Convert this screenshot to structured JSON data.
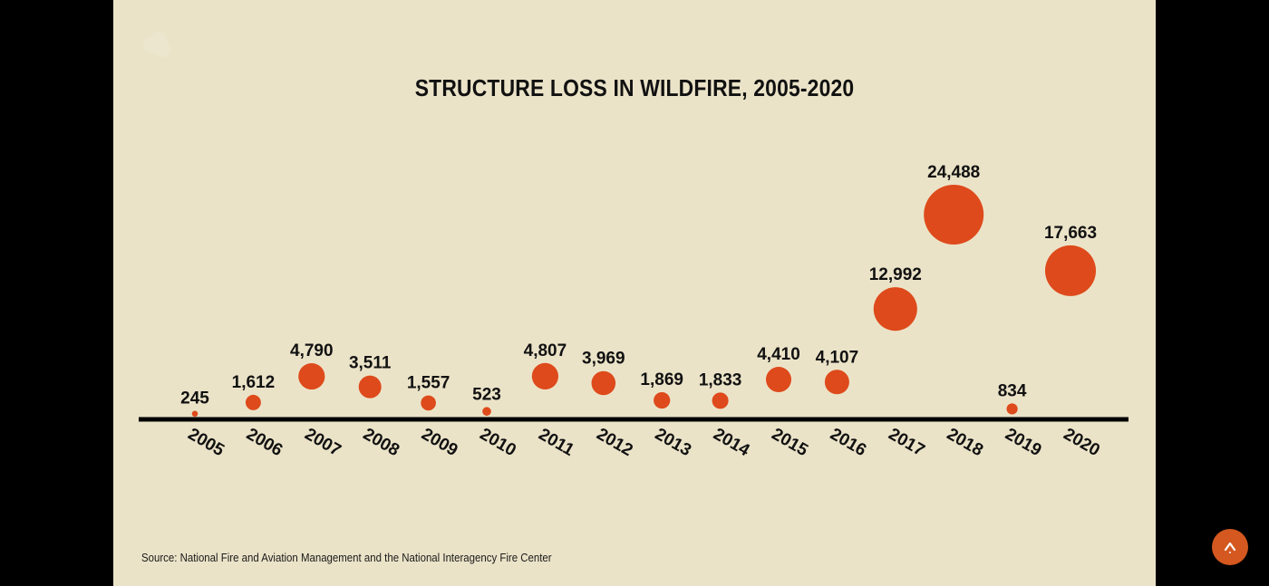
{
  "chart_data": {
    "type": "bubble",
    "title": "STRUCTURE LOSS IN WILDFIRE, 2005-2020",
    "categories": [
      "2005",
      "2006",
      "2007",
      "2008",
      "2009",
      "2010",
      "2011",
      "2012",
      "2013",
      "2014",
      "2015",
      "2016",
      "2017",
      "2018",
      "2019",
      "2020"
    ],
    "values": [
      245,
      1612,
      4790,
      3511,
      1557,
      523,
      4807,
      3969,
      1869,
      1833,
      4410,
      4107,
      12992,
      24488,
      834,
      17663
    ],
    "value_labels": [
      "245",
      "1,612",
      "4,790",
      "3,511",
      "1,557",
      "523",
      "4,807",
      "3,969",
      "1,869",
      "1,833",
      "4,410",
      "4,107",
      "12,992",
      "24,488",
      "834",
      "17,663"
    ],
    "xlabel": "",
    "ylabel": "",
    "ylim": [
      0,
      24488
    ],
    "legend": "none",
    "grid": false,
    "color": "#de4a1b"
  },
  "source": "Source: National Fire and Aviation Management and the National Interagency Fire Center",
  "scroll_top_label": "^"
}
